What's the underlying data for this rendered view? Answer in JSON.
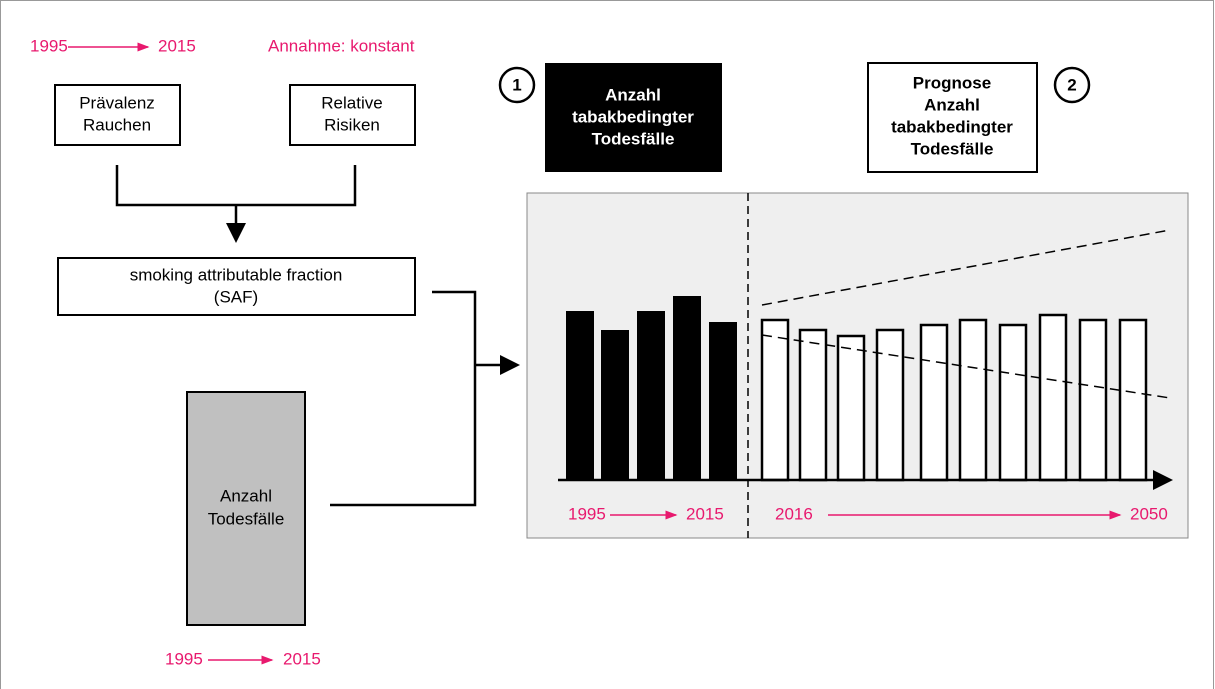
{
  "timeline_top": {
    "start": "1995",
    "end": "2015"
  },
  "assumption": "Annahme: konstant",
  "inputs": [
    {
      "label": [
        "Prävalenz",
        "Rauchen"
      ]
    },
    {
      "label": [
        "Relative",
        "Risiken"
      ]
    }
  ],
  "saf": {
    "label": [
      "smoking attributable fraction",
      "(SAF)"
    ]
  },
  "deaths": {
    "label": [
      "Anzahl",
      "Todesfälle"
    ],
    "start": "1995",
    "end": "2015"
  },
  "steps": [
    {
      "number": "1",
      "label": [
        "Anzahl",
        "tabakbedingter",
        "Todesfälle"
      ]
    },
    {
      "number": "2",
      "label": [
        "Prognose",
        "Anzahl",
        "tabakbedingter",
        "Todesfälle"
      ]
    }
  ],
  "chart_periods": [
    {
      "start": "1995",
      "end": "2015"
    },
    {
      "start": "2016",
      "end": "2050"
    }
  ]
}
